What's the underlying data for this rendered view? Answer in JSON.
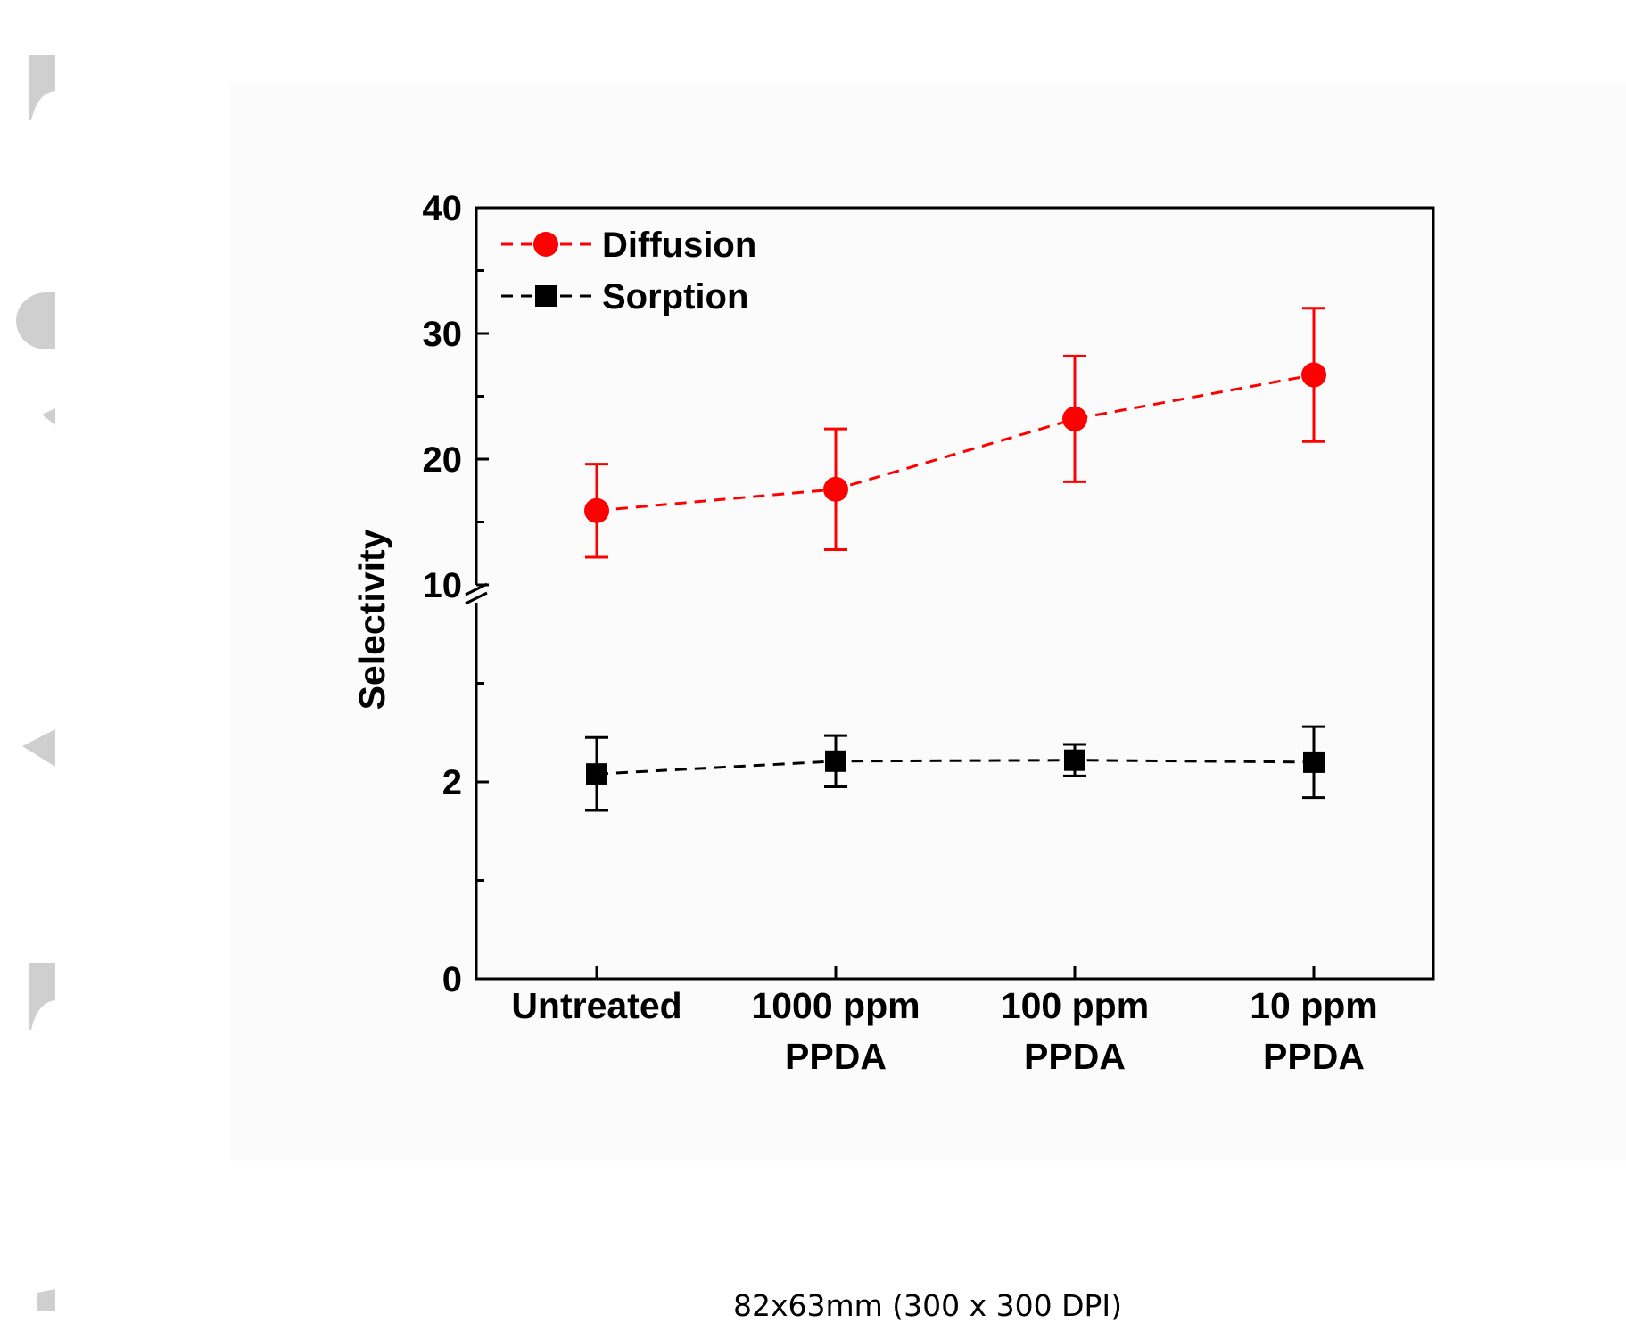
{
  "caption": "82x63mm (300 x 300 DPI)",
  "colors": {
    "diffusion": "#ff0000",
    "sorption": "#000000",
    "watermark": "#cfcfcf",
    "panel": "#fbfbfb"
  },
  "chart_data": {
    "type": "scatter",
    "title": "",
    "xlabel": "",
    "ylabel": "Selectivity",
    "categories": [
      [
        "Untreated"
      ],
      [
        "1000 ppm",
        "PPDA"
      ],
      [
        "100 ppm",
        "PPDA"
      ],
      [
        "10 ppm",
        "PPDA"
      ]
    ],
    "y_axis": {
      "broken": true,
      "upper_segment": {
        "range": [
          10,
          40
        ],
        "ticks": [
          "10",
          "20",
          "30",
          "40"
        ]
      },
      "lower_segment": {
        "range": [
          0,
          4
        ],
        "ticks": [
          "0",
          "2"
        ]
      }
    },
    "legend_position": "top-left",
    "grid": false,
    "series": [
      {
        "name": "Diffusion",
        "marker": "circle",
        "line": "dashed",
        "color": "#ff0000",
        "values": [
          15.9,
          17.6,
          23.2,
          26.7
        ],
        "error": [
          3.7,
          4.8,
          5.0,
          5.3
        ]
      },
      {
        "name": "Sorption",
        "marker": "square",
        "line": "dashed",
        "color": "#000000",
        "values": [
          2.08,
          2.21,
          2.22,
          2.2
        ],
        "error": [
          0.37,
          0.26,
          0.16,
          0.36
        ]
      }
    ]
  }
}
